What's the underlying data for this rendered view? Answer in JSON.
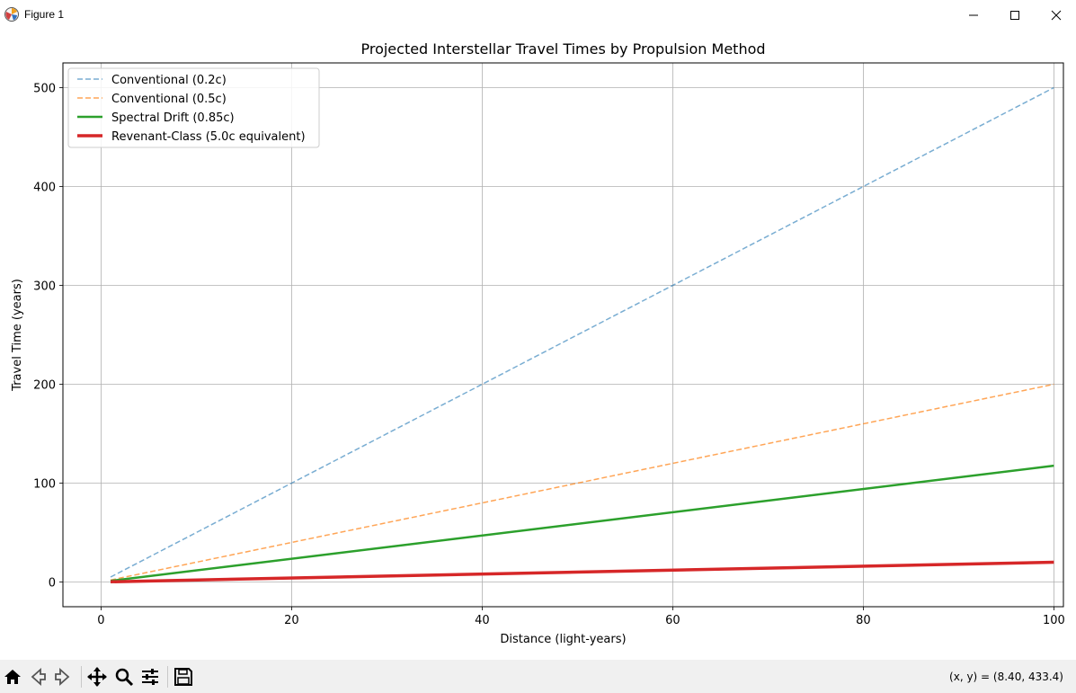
{
  "window": {
    "title": "Figure 1"
  },
  "toolbar": {
    "buttons": [
      "home-icon",
      "back-icon",
      "forward-icon",
      "pan-icon",
      "zoom-icon",
      "configure-icon",
      "save-icon"
    ],
    "coords_readout": "(x, y) = (8.40, 433.4)"
  },
  "chart_data": {
    "type": "line",
    "title": "Projected Interstellar Travel Times by Propulsion Method",
    "xlabel": "Distance (light-years)",
    "ylabel": "Travel Time (years)",
    "xlim": [
      -4,
      101
    ],
    "ylim": [
      -25,
      525
    ],
    "xticks": [
      0,
      20,
      40,
      60,
      80,
      100
    ],
    "yticks": [
      0,
      100,
      200,
      300,
      400,
      500
    ],
    "grid": true,
    "legend_position": "upper-left",
    "x": [
      1,
      100
    ],
    "series": [
      {
        "name": "Conventional (0.2c)",
        "values": [
          5,
          500
        ],
        "color": "#1f77b4",
        "style": "dashed",
        "width": 1.5,
        "opacity": 0.6
      },
      {
        "name": "Conventional (0.5c)",
        "values": [
          2,
          200
        ],
        "color": "#ff7f0e",
        "style": "dashed",
        "width": 1.5,
        "opacity": 0.7
      },
      {
        "name": "Spectral Drift (0.85c)",
        "values": [
          1.18,
          117.6
        ],
        "color": "#2ca02c",
        "style": "solid",
        "width": 2.5,
        "opacity": 1
      },
      {
        "name": "Revenant-Class (5.0c equivalent)",
        "values": [
          0.2,
          20
        ],
        "color": "#d62728",
        "style": "solid",
        "width": 3.5,
        "opacity": 1
      }
    ]
  }
}
